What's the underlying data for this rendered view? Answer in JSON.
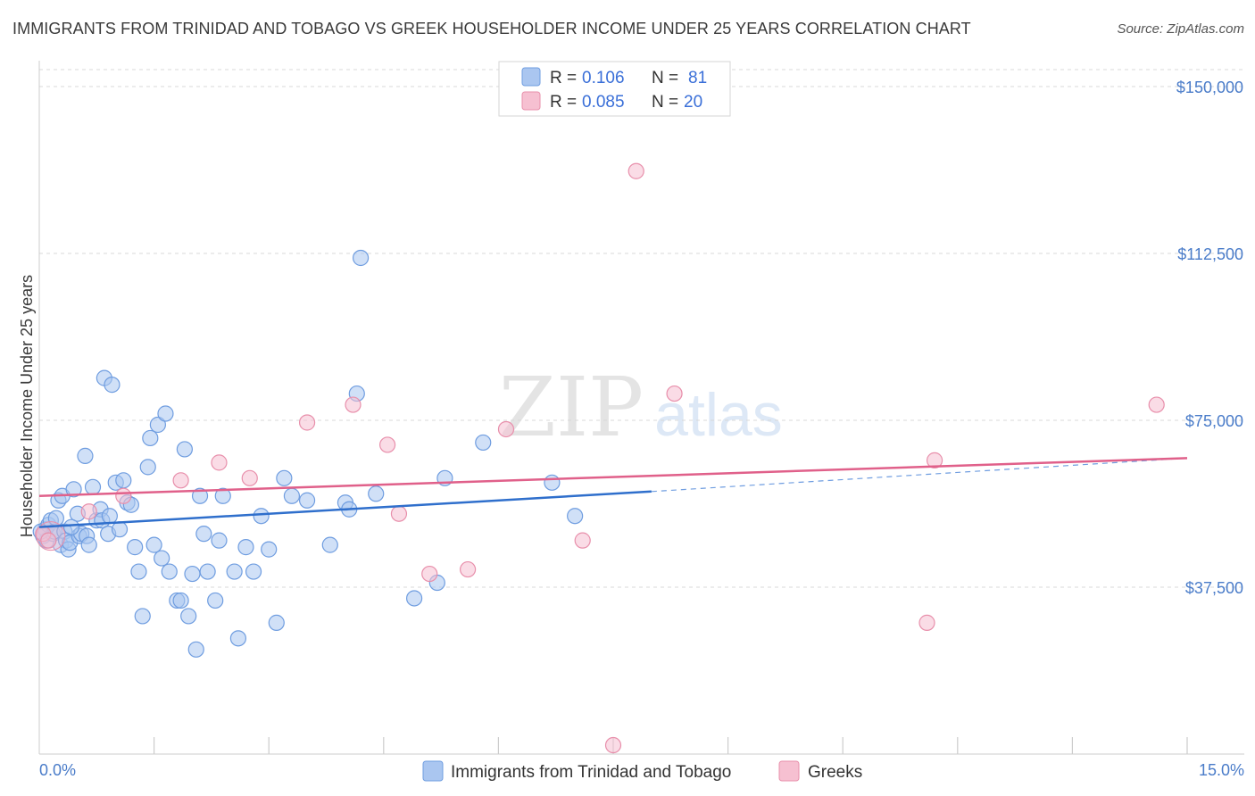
{
  "header": {
    "title": "IMMIGRANTS FROM TRINIDAD AND TOBAGO VS GREEK HOUSEHOLDER INCOME UNDER 25 YEARS CORRELATION CHART",
    "source": "Source: ZipAtlas.com"
  },
  "watermark": {
    "zip": "ZIP",
    "atlas": "atlas"
  },
  "colors": {
    "blue": "#6f9de0",
    "blue_fill": "#aac6f0",
    "blue_line": "#2f6fcc",
    "pink": "#e88fab",
    "pink_fill": "#f6c0d1",
    "pink_line": "#e0608a",
    "tick_text": "#4a7cc9",
    "grid": "#d8d8d8"
  },
  "legend": {
    "rows": [
      {
        "r_label": "R =",
        "r_value": "0.106",
        "n_label": "N =",
        "n_value": "81"
      },
      {
        "r_label": "R =",
        "r_value": "0.085",
        "n_label": "N =",
        "n_value": "20"
      }
    ]
  },
  "chart_data": {
    "type": "scatter",
    "title": "IMMIGRANTS FROM TRINIDAD AND TOBAGO VS GREEK HOUSEHOLDER INCOME UNDER 25 YEARS CORRELATION CHART",
    "xlabel": "",
    "ylabel": "Householder Income Under 25 years",
    "xlim": [
      0,
      15
    ],
    "ylim": [
      0,
      155000
    ],
    "x_tick_labels": [
      "0.0%",
      "15.0%"
    ],
    "y_ticks": [
      37500,
      75000,
      112500,
      150000
    ],
    "y_tick_labels": [
      "$37,500",
      "$75,000",
      "$112,500",
      "$150,000"
    ],
    "series": [
      {
        "name": "Immigrants from Trinidad and Tobago",
        "color": "blue",
        "trend": {
          "x": [
            0,
            8.0
          ],
          "y": [
            51000,
            59000
          ],
          "dashed_to": [
            15,
            66500
          ]
        },
        "points": [
          [
            0.05,
            49000
          ],
          [
            0.08,
            50500
          ],
          [
            0.1,
            48000
          ],
          [
            0.12,
            51500
          ],
          [
            0.15,
            52500
          ],
          [
            0.18,
            49500
          ],
          [
            0.2,
            50000
          ],
          [
            0.22,
            53000
          ],
          [
            0.25,
            57000
          ],
          [
            0.28,
            47000
          ],
          [
            0.3,
            58000
          ],
          [
            0.33,
            50000
          ],
          [
            0.35,
            48000
          ],
          [
            0.38,
            46000
          ],
          [
            0.4,
            47500
          ],
          [
            0.45,
            59500
          ],
          [
            0.5,
            54000
          ],
          [
            0.52,
            49000
          ],
          [
            0.55,
            49500
          ],
          [
            0.6,
            67000
          ],
          [
            0.62,
            49000
          ],
          [
            0.65,
            47000
          ],
          [
            0.7,
            60000
          ],
          [
            0.75,
            52500
          ],
          [
            0.8,
            55000
          ],
          [
            0.82,
            52500
          ],
          [
            0.85,
            84500
          ],
          [
            0.9,
            49500
          ],
          [
            0.92,
            53500
          ],
          [
            0.95,
            83000
          ],
          [
            1.0,
            61000
          ],
          [
            1.05,
            50500
          ],
          [
            1.1,
            61500
          ],
          [
            1.15,
            56500
          ],
          [
            1.2,
            56000
          ],
          [
            1.25,
            46500
          ],
          [
            1.3,
            41000
          ],
          [
            1.35,
            31000
          ],
          [
            1.42,
            64500
          ],
          [
            1.45,
            71000
          ],
          [
            1.5,
            47000
          ],
          [
            1.55,
            74000
          ],
          [
            1.6,
            44000
          ],
          [
            1.65,
            76500
          ],
          [
            1.7,
            41000
          ],
          [
            1.8,
            34500
          ],
          [
            1.85,
            34500
          ],
          [
            1.9,
            68500
          ],
          [
            1.95,
            31000
          ],
          [
            2.0,
            40500
          ],
          [
            2.05,
            23500
          ],
          [
            2.1,
            58000
          ],
          [
            2.15,
            49500
          ],
          [
            2.2,
            41000
          ],
          [
            2.3,
            34500
          ],
          [
            2.35,
            48000
          ],
          [
            2.4,
            58000
          ],
          [
            2.55,
            41000
          ],
          [
            2.6,
            26000
          ],
          [
            2.7,
            46500
          ],
          [
            2.8,
            41000
          ],
          [
            2.9,
            53500
          ],
          [
            3.0,
            46000
          ],
          [
            3.1,
            29500
          ],
          [
            3.2,
            62000
          ],
          [
            3.3,
            58000
          ],
          [
            3.5,
            57000
          ],
          [
            3.8,
            47000
          ],
          [
            4.0,
            56500
          ],
          [
            4.05,
            55000
          ],
          [
            4.15,
            81000
          ],
          [
            4.2,
            111500
          ],
          [
            4.4,
            58500
          ],
          [
            4.9,
            35000
          ],
          [
            5.2,
            38500
          ],
          [
            5.3,
            62000
          ],
          [
            5.8,
            70000
          ],
          [
            6.7,
            61000
          ],
          [
            7.0,
            53500
          ],
          [
            0.02,
            50000
          ],
          [
            0.42,
            51000
          ]
        ]
      },
      {
        "name": "Greeks",
        "color": "pink",
        "trend": {
          "x": [
            0,
            15
          ],
          "y": [
            58000,
            66500
          ]
        },
        "points": [
          [
            0.05,
            49500
          ],
          [
            0.12,
            48000
          ],
          [
            0.65,
            54500
          ],
          [
            1.1,
            58000
          ],
          [
            1.85,
            61500
          ],
          [
            2.35,
            65500
          ],
          [
            2.75,
            62000
          ],
          [
            3.5,
            74500
          ],
          [
            4.1,
            78500
          ],
          [
            4.55,
            69500
          ],
          [
            4.7,
            54000
          ],
          [
            5.1,
            40500
          ],
          [
            5.6,
            41500
          ],
          [
            6.1,
            73000
          ],
          [
            7.1,
            48000
          ],
          [
            7.8,
            131000
          ],
          [
            7.5,
            2000
          ],
          [
            8.3,
            81000
          ],
          [
            11.6,
            29500
          ],
          [
            11.7,
            66000
          ]
        ]
      }
    ],
    "extra_points": [
      [
        14.6,
        78500
      ]
    ]
  },
  "bottom_legend": {
    "items": [
      {
        "label": "Immigrants from Trinidad and Tobago"
      },
      {
        "label": "Greeks"
      }
    ]
  }
}
